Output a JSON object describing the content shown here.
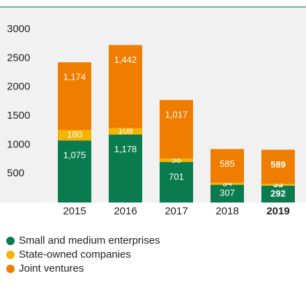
{
  "chart_data": {
    "type": "stacked_bar",
    "categories": [
      "2015",
      "2016",
      "2017",
      "2018",
      "2019"
    ],
    "series": [
      {
        "name": "Small and medium enterprises",
        "color": "#0a7a4f",
        "values": [
          1075,
          1178,
          701,
          307,
          292
        ],
        "value_labels": [
          "1,075",
          "1,178",
          "701",
          "307",
          "292"
        ]
      },
      {
        "name": "State-owned companies",
        "color": "#f5b400",
        "values": [
          180,
          108,
          58,
          34,
          33
        ]
      },
      {
        "name": "Joint ventures",
        "color": "#ef7d00",
        "values": [
          1174,
          1442,
          1017,
          585,
          589
        ],
        "value_labels": [
          "1,174",
          "1,442",
          "1,017",
          "585",
          "589"
        ]
      }
    ],
    "ylim": [
      0,
      3000
    ],
    "yticks": [
      500,
      1000,
      1500,
      2000,
      2500,
      3000
    ],
    "grid": false
  }
}
